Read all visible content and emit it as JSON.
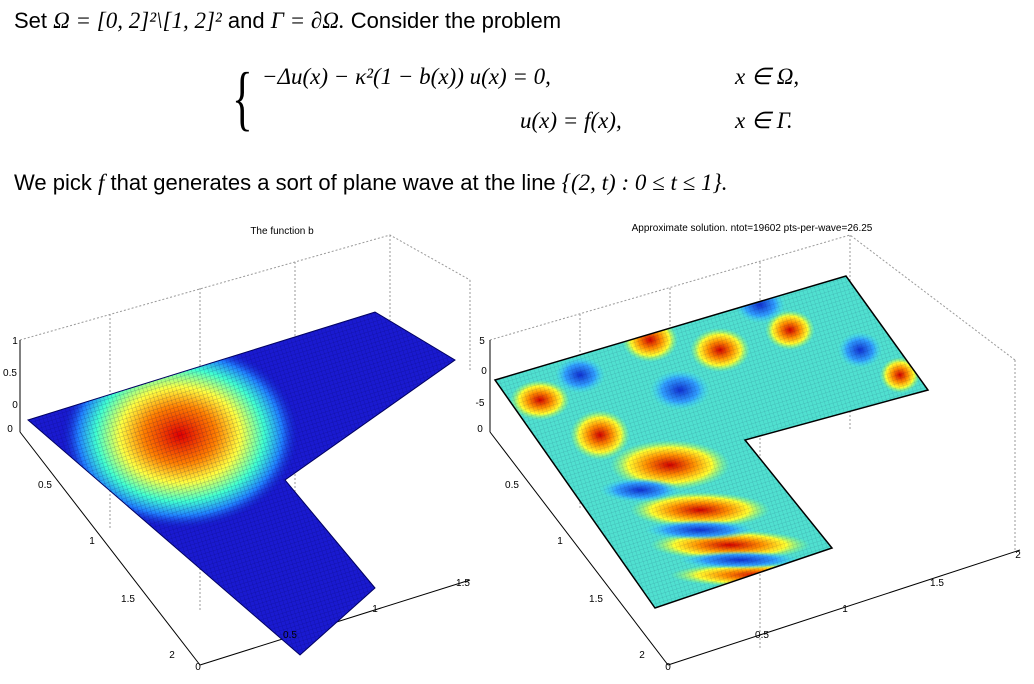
{
  "intro": {
    "set": "Set",
    "domain": "Ω = [0, 2]²\\[1, 2]²",
    "and": "and",
    "boundary": "Γ = ∂Ω.",
    "consider": "Consider the problem"
  },
  "equations": [
    {
      "lhs": "−Δu(x) − κ²(1 − b(x)) u(x) = 0,",
      "condition": "x ∈ Ω,"
    },
    {
      "lhs": "u(x) = f(x),",
      "condition": "x ∈ Γ."
    }
  ],
  "pick": {
    "before": "We pick",
    "f": "f",
    "after": "that generates a sort of plane wave at the line",
    "set": "{(2, t) : 0 ≤ t ≤ 1}."
  },
  "plots": [
    {
      "title": "The function b",
      "z_ticks": [
        "1",
        "0.5",
        "0"
      ],
      "y_ticks": [
        "0",
        "0.5",
        "1",
        "1.5",
        "2"
      ],
      "x_ticks": [
        "0",
        "0.5",
        "1",
        "1.5"
      ]
    },
    {
      "title": "Approximate solution. ntot=19602  pts-per-wave=26.25",
      "z_ticks": [
        "5",
        "0",
        "-5"
      ],
      "y_ticks": [
        "0",
        "0.5",
        "1",
        "1.5",
        "2"
      ],
      "x_ticks": [
        "0",
        "0.5",
        "1",
        "1.5",
        "2"
      ]
    }
  ]
}
